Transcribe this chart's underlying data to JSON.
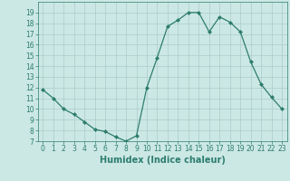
{
  "x": [
    0,
    1,
    2,
    3,
    4,
    5,
    6,
    7,
    8,
    9,
    10,
    11,
    12,
    13,
    14,
    15,
    16,
    17,
    18,
    19,
    20,
    21,
    22,
    23
  ],
  "y": [
    11.8,
    11.0,
    10.0,
    9.5,
    8.8,
    8.1,
    7.9,
    7.4,
    7.0,
    7.5,
    12.0,
    14.8,
    17.7,
    18.3,
    19.0,
    19.0,
    17.2,
    18.6,
    18.1,
    17.2,
    14.4,
    12.3,
    11.1,
    10.0
  ],
  "line_color": "#2d7d6e",
  "marker": "D",
  "marker_size": 2.0,
  "bg_color": "#cce8e4",
  "grid_color": "#aaccca",
  "xlabel": "Humidex (Indice chaleur)",
  "ylim": [
    7,
    20
  ],
  "xlim": [
    -0.5,
    23.5
  ],
  "yticks": [
    7,
    8,
    9,
    10,
    11,
    12,
    13,
    14,
    15,
    16,
    17,
    18,
    19
  ],
  "xticks": [
    0,
    1,
    2,
    3,
    4,
    5,
    6,
    7,
    8,
    9,
    10,
    11,
    12,
    13,
    14,
    15,
    16,
    17,
    18,
    19,
    20,
    21,
    22,
    23
  ],
  "tick_label_fontsize": 5.5,
  "xlabel_fontsize": 7.0,
  "linewidth": 0.9
}
